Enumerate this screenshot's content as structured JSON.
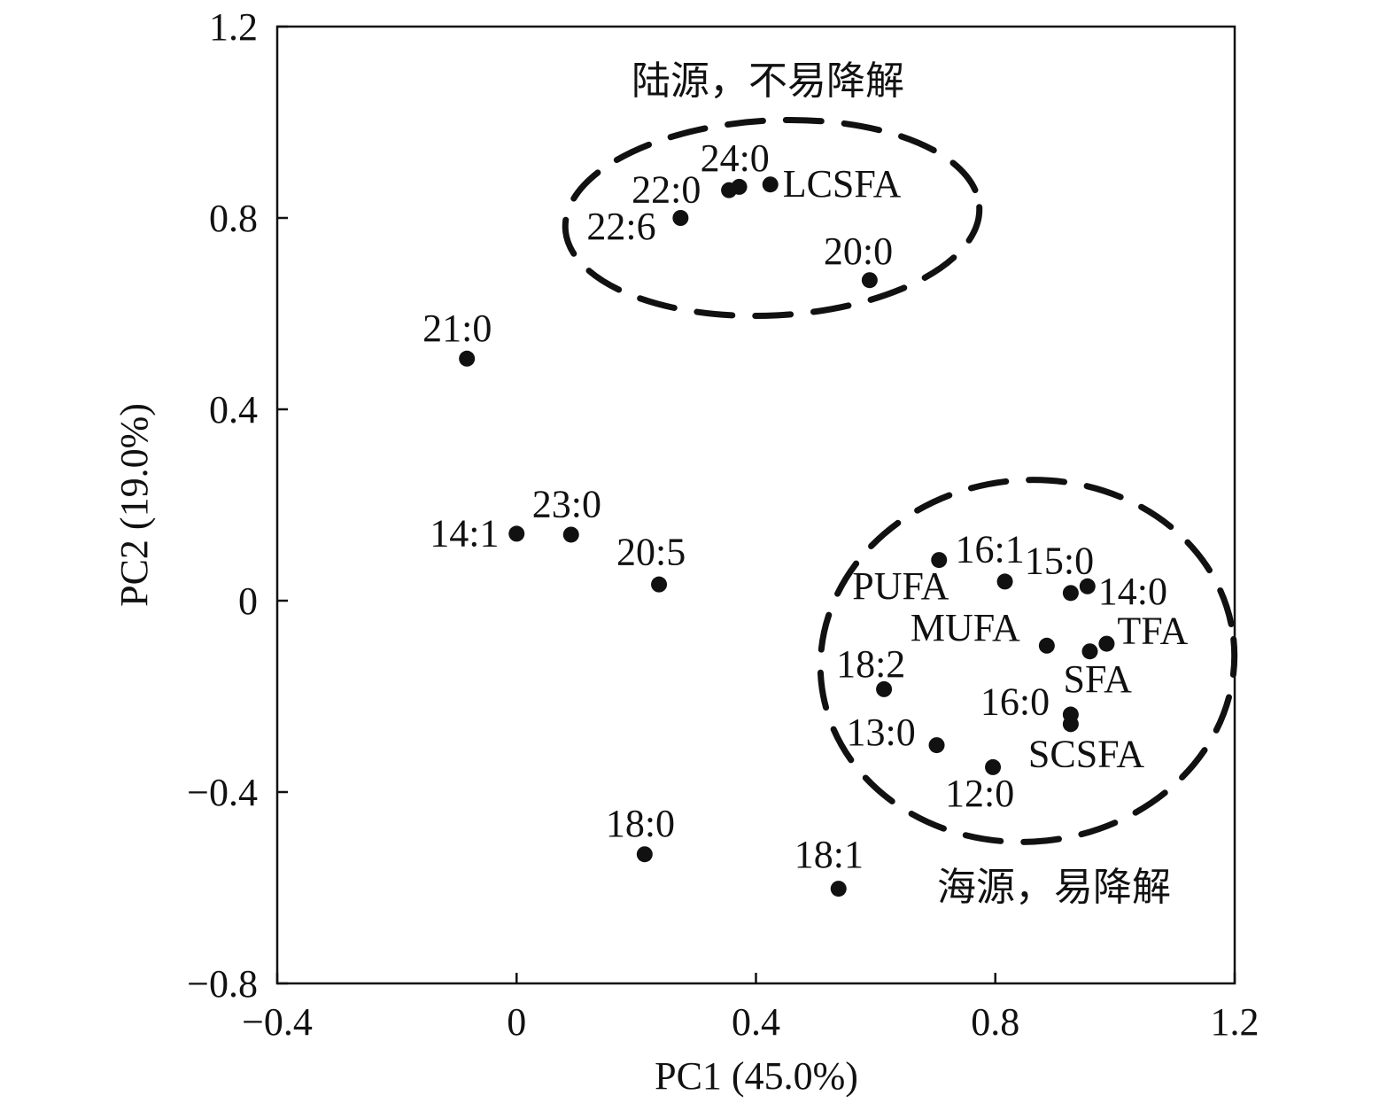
{
  "chart_data": {
    "type": "scatter",
    "xlabel": "PC1 (45.0%)",
    "ylabel": "PC2 (19.0%)",
    "xlim": [
      -0.4,
      1.2
    ],
    "ylim": [
      -0.8,
      1.2
    ],
    "x_ticks": [
      "−0.4",
      "0",
      "0.4",
      "0.8",
      "1.2"
    ],
    "y_ticks": [
      "−0.8",
      "−0.4",
      "0",
      "0.4",
      "0.8",
      "1.2"
    ],
    "x_tick_values": [
      -0.4,
      0,
      0.4,
      0.8,
      1.2
    ],
    "y_tick_values": [
      -0.8,
      -0.4,
      0,
      0.4,
      0.8,
      1.2
    ],
    "grid": false,
    "points": [
      {
        "label": "24:0",
        "x": 0.372,
        "y": 0.865
      },
      {
        "label": "22:0",
        "x": 0.355,
        "y": 0.858
      },
      {
        "label": "LCSFA",
        "x": 0.424,
        "y": 0.87
      },
      {
        "label": "22:6",
        "x": 0.274,
        "y": 0.8
      },
      {
        "label": "20:0",
        "x": 0.59,
        "y": 0.67
      },
      {
        "label": "21:0",
        "x": -0.083,
        "y": 0.506
      },
      {
        "label": "14:1",
        "x": 0.0,
        "y": 0.14
      },
      {
        "label": "23:0",
        "x": 0.091,
        "y": 0.138
      },
      {
        "label": "20:5",
        "x": 0.238,
        "y": 0.034
      },
      {
        "label": "PUFA",
        "x": 0.706,
        "y": 0.085
      },
      {
        "label": "16:1",
        "x": 0.816,
        "y": 0.04
      },
      {
        "label": "15:0",
        "x": 0.926,
        "y": 0.016
      },
      {
        "label": "14:0",
        "x": 0.954,
        "y": 0.03
      },
      {
        "label": "MUFA",
        "x": 0.886,
        "y": -0.094
      },
      {
        "label": "TFA",
        "x": 0.986,
        "y": -0.09
      },
      {
        "label": "SFA",
        "x": 0.958,
        "y": -0.106
      },
      {
        "label": "18:2",
        "x": 0.614,
        "y": -0.185
      },
      {
        "label": "16:0",
        "x": 0.926,
        "y": -0.238
      },
      {
        "label": "SCSFA",
        "x": 0.926,
        "y": -0.258
      },
      {
        "label": "13:0",
        "x": 0.702,
        "y": -0.302
      },
      {
        "label": "12:0",
        "x": 0.796,
        "y": -0.348
      },
      {
        "label": "18:0",
        "x": 0.214,
        "y": -0.53
      },
      {
        "label": "18:1",
        "x": 0.538,
        "y": -0.602
      }
    ],
    "annotations": [
      {
        "text": "陆源，不易降解"
      },
      {
        "text": "海源，易降解"
      }
    ]
  }
}
